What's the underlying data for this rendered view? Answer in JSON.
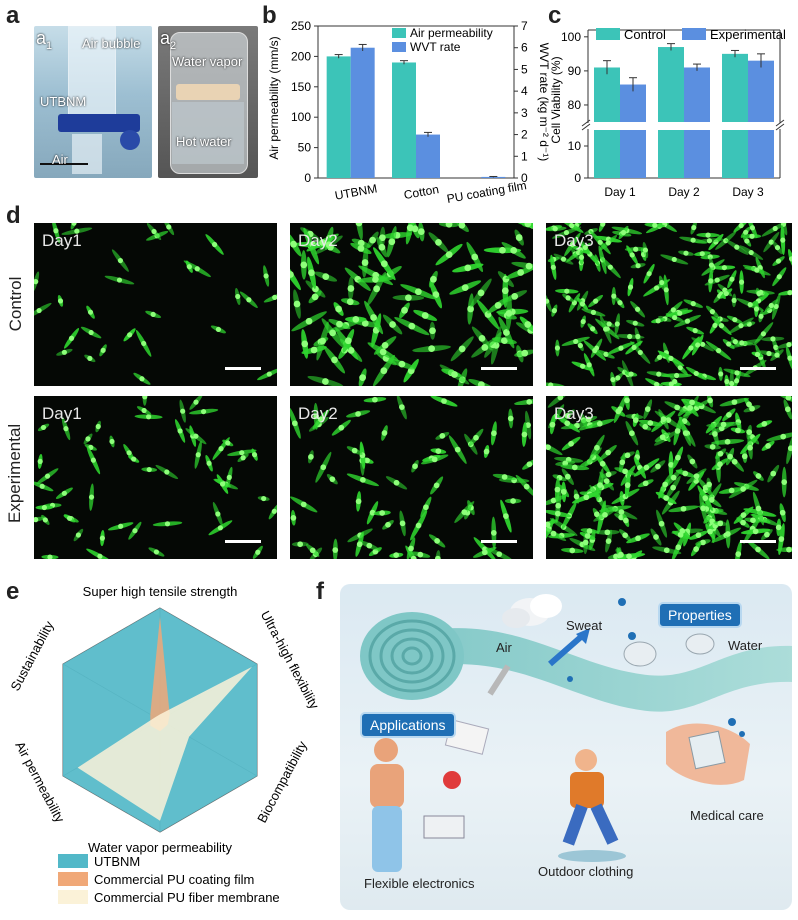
{
  "panels": {
    "a": "a",
    "a1": "a",
    "a1_sub": "1",
    "a2": "a",
    "a2_sub": "2",
    "b": "b",
    "c": "c",
    "d": "d",
    "e": "e",
    "f": "f"
  },
  "photo_a1": {
    "labels": [
      "Air bubble",
      "UTBNM",
      "Air"
    ]
  },
  "photo_a2": {
    "labels": [
      "Water vapor",
      "Hot water"
    ]
  },
  "chart_b": {
    "type": "bar",
    "categories": [
      "UTBNM",
      "Cotton",
      "PU coating film"
    ],
    "series": [
      {
        "name": "Air permeability",
        "values": [
          200,
          190,
          0
        ],
        "errors": [
          3,
          3,
          0
        ],
        "color": "#3cc4b8",
        "axis": "left"
      },
      {
        "name": "WVT rate",
        "values": [
          6.0,
          2.0,
          0.05
        ],
        "errors": [
          0.15,
          0.1,
          0.02
        ],
        "color": "#5b8fe0",
        "axis": "right"
      }
    ],
    "ylabel": "Air permeability (mm/s)",
    "y2label": "WVT rate (kg m⁻² d⁻¹)",
    "ylim": [
      0,
      250
    ],
    "y2lim": [
      0,
      7
    ],
    "yticks": [
      0,
      50,
      100,
      150,
      200,
      250
    ],
    "y2ticks": [
      0,
      1,
      2,
      3,
      4,
      5,
      6,
      7
    ],
    "legend": "top-right"
  },
  "chart_c": {
    "type": "bar",
    "categories": [
      "Day 1",
      "Day 2",
      "Day 3"
    ],
    "series": [
      {
        "name": "Control",
        "values": [
          91,
          97,
          95
        ],
        "errors": [
          2,
          1,
          1
        ],
        "color": "#3cc4b8"
      },
      {
        "name": "Experimental",
        "values": [
          86,
          91,
          93
        ],
        "errors": [
          2,
          1,
          2
        ],
        "color": "#5b8fe0"
      }
    ],
    "ylabel": "Cell Viability (%)",
    "yticks_upper": [
      80,
      90,
      100
    ],
    "yticks_lower": [
      0,
      10
    ],
    "axis_break": true,
    "legend": "top"
  },
  "micrographs": {
    "row_labels": [
      "Control",
      "Experimental"
    ],
    "days": [
      "Day1",
      "Day2",
      "Day3"
    ]
  },
  "chart_e": {
    "type": "radar",
    "axes": [
      "Super high tensile strength",
      "Ultra-high flexibility",
      "Biocompatibility",
      "Water vapor permeability",
      "Air permeability",
      "Sustainability"
    ],
    "series": [
      {
        "name": "UTBNM",
        "values": [
          1.0,
          1.0,
          1.0,
          1.0,
          1.0,
          1.0
        ],
        "color": "#52b8c8"
      },
      {
        "name": "Commercial PU coating film",
        "values": [
          0.92,
          0.1,
          0.08,
          0.1,
          0.1,
          0.1
        ],
        "color": "#f0a878"
      },
      {
        "name": "Commercial PU fiber membrane",
        "values": [
          0.05,
          0.95,
          0.3,
          0.9,
          0.85,
          0.05
        ],
        "color": "#fbf2d8"
      }
    ],
    "legend": "bottom-left"
  },
  "panel_f": {
    "labels": {
      "air": "Air",
      "sweat": "Sweat",
      "properties": "Properties",
      "water": "Water",
      "applications": "Applications",
      "medical": "Medical care",
      "flexible": "Flexible electronics",
      "outdoor": "Outdoor clothing"
    }
  }
}
